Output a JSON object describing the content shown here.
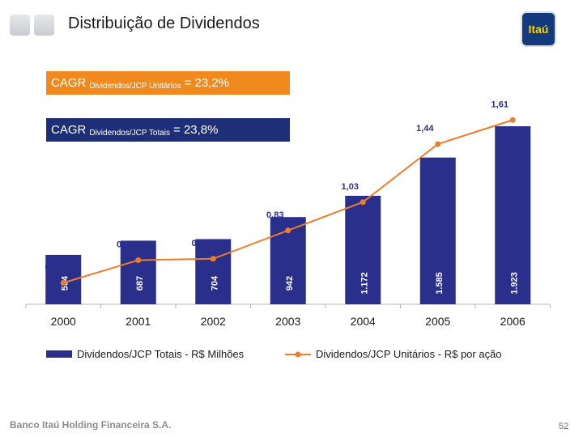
{
  "header": {
    "title": "Distribuição de Dividendos",
    "logo_text": "Itaú"
  },
  "cagr": {
    "unit": {
      "prefix": "CAGR",
      "sub": "Dividendos/JCP Unitários",
      "value": "=  23,2%"
    },
    "total": {
      "prefix": "CAGR",
      "sub": "Dividendos/JCP Totais",
      "value": "=  23,8%"
    }
  },
  "colors": {
    "bar": "#2b2f8c",
    "line": "#ee7d2b",
    "cagr_orange": "#f08a1e",
    "cagr_blue": "#1e2f78"
  },
  "chart_data": {
    "type": "bar",
    "categories": [
      "2000",
      "2001",
      "2002",
      "2003",
      "2004",
      "2005",
      "2006"
    ],
    "series": [
      {
        "name": "Dividendos/JCP Totais - R$ Milhões",
        "type": "bar",
        "values": [
          534,
          687,
          704,
          942,
          1172,
          1585,
          1923
        ],
        "labels": [
          "534",
          "687",
          "704",
          "942",
          "1.172",
          "1.585",
          "1.923"
        ]
      },
      {
        "name": "Dividendos/JCP Unitários - R$ por ação",
        "type": "line",
        "values": [
          0.46,
          0.62,
          0.63,
          0.83,
          1.03,
          1.44,
          1.61
        ],
        "labels": [
          "0,46",
          "0,62",
          "0,63",
          "0,83",
          "1,03",
          "1,44",
          "1,61"
        ]
      }
    ],
    "legend": "bottom"
  },
  "footer": {
    "company": "Banco Itaú Holding Financeira S.A.",
    "page": "52"
  }
}
